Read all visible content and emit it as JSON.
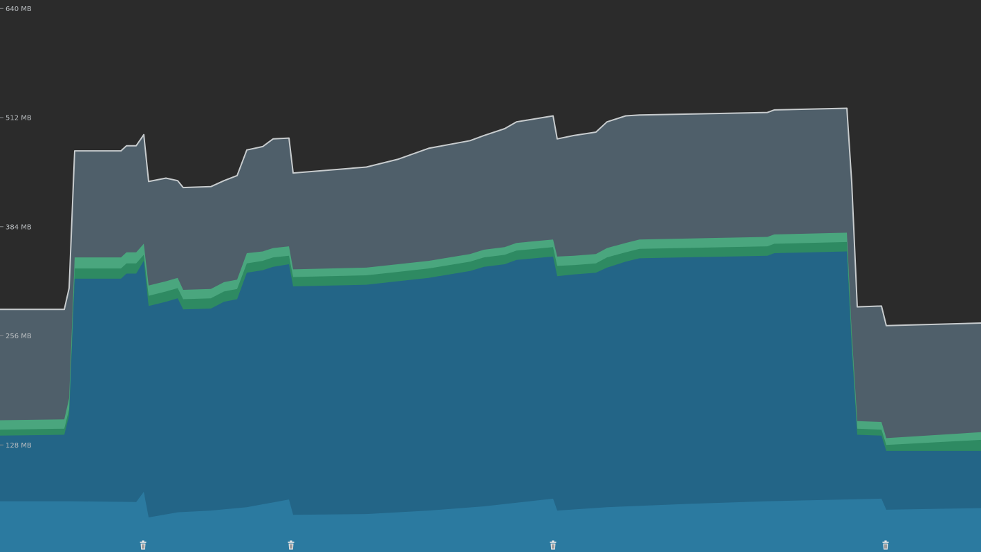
{
  "colors": {
    "background": "#2b2b2b",
    "total_fill": "#4f5f6a",
    "total_line": "#c8ccce",
    "green_light": "#4aa67e",
    "green_dark": "#2e8a62",
    "main_blue": "#236587",
    "base_blue": "#2b7aa0",
    "gc_icon": "#e6e6e6"
  },
  "chart_data": {
    "type": "area",
    "title": "",
    "xlabel": "",
    "ylabel": "",
    "yticks": [
      "640 MB",
      "512 MB",
      "384 MB",
      "256 MB",
      "128 MB"
    ],
    "ylim": [
      0,
      650
    ],
    "grid": false,
    "legend": "none",
    "series": [
      {
        "key": "total",
        "points": [
          [
            0,
            287
          ],
          [
            93,
            287
          ],
          [
            100,
            312
          ],
          [
            108,
            473
          ],
          [
            175,
            473
          ],
          [
            183,
            479
          ],
          [
            197,
            479
          ],
          [
            208,
            492
          ],
          [
            215,
            437
          ],
          [
            240,
            441
          ],
          [
            257,
            438
          ],
          [
            265,
            430
          ],
          [
            305,
            431
          ],
          [
            324,
            438
          ],
          [
            343,
            444
          ],
          [
            357,
            474
          ],
          [
            380,
            478
          ],
          [
            395,
            487
          ],
          [
            418,
            488
          ],
          [
            424,
            447
          ],
          [
            530,
            454
          ],
          [
            575,
            463
          ],
          [
            620,
            476
          ],
          [
            680,
            485
          ],
          [
            700,
            491
          ],
          [
            730,
            499
          ],
          [
            747,
            507
          ],
          [
            800,
            514
          ],
          [
            806,
            487
          ],
          [
            830,
            491
          ],
          [
            862,
            495
          ],
          [
            878,
            507
          ],
          [
            905,
            514
          ],
          [
            925,
            515
          ],
          [
            1110,
            518
          ],
          [
            1120,
            521
          ],
          [
            1225,
            523
          ],
          [
            1232,
            436
          ],
          [
            1240,
            290
          ],
          [
            1275,
            291
          ],
          [
            1282,
            268
          ],
          [
            1419,
            271
          ]
        ]
      },
      {
        "key": "green_top",
        "points": [
          [
            0,
            157
          ],
          [
            93,
            158
          ],
          [
            100,
            183
          ],
          [
            108,
            348
          ],
          [
            175,
            348
          ],
          [
            183,
            354
          ],
          [
            197,
            354
          ],
          [
            208,
            364
          ],
          [
            215,
            315
          ],
          [
            240,
            320
          ],
          [
            257,
            324
          ],
          [
            265,
            310
          ],
          [
            305,
            311
          ],
          [
            324,
            319
          ],
          [
            343,
            322
          ],
          [
            357,
            353
          ],
          [
            380,
            355
          ],
          [
            395,
            359
          ],
          [
            418,
            361
          ],
          [
            424,
            334
          ],
          [
            530,
            336
          ],
          [
            575,
            340
          ],
          [
            620,
            344
          ],
          [
            680,
            352
          ],
          [
            700,
            357
          ],
          [
            730,
            360
          ],
          [
            747,
            365
          ],
          [
            800,
            369
          ],
          [
            806,
            349
          ],
          [
            830,
            350
          ],
          [
            862,
            352
          ],
          [
            878,
            359
          ],
          [
            905,
            365
          ],
          [
            925,
            369
          ],
          [
            1110,
            372
          ],
          [
            1120,
            375
          ],
          [
            1225,
            377
          ],
          [
            1232,
            260
          ],
          [
            1240,
            156
          ],
          [
            1275,
            155
          ],
          [
            1282,
            136
          ],
          [
            1419,
            143
          ]
        ]
      },
      {
        "key": "green_mid",
        "points": [
          [
            0,
            146
          ],
          [
            93,
            147
          ],
          [
            100,
            170
          ],
          [
            108,
            335
          ],
          [
            175,
            335
          ],
          [
            183,
            341
          ],
          [
            197,
            341
          ],
          [
            208,
            351
          ],
          [
            215,
            303
          ],
          [
            240,
            308
          ],
          [
            257,
            312
          ],
          [
            265,
            299
          ],
          [
            305,
            300
          ],
          [
            324,
            308
          ],
          [
            343,
            311
          ],
          [
            357,
            341
          ],
          [
            380,
            344
          ],
          [
            395,
            348
          ],
          [
            418,
            350
          ],
          [
            424,
            325
          ],
          [
            530,
            327
          ],
          [
            575,
            331
          ],
          [
            620,
            335
          ],
          [
            680,
            343
          ],
          [
            700,
            348
          ],
          [
            730,
            351
          ],
          [
            747,
            356
          ],
          [
            800,
            360
          ],
          [
            806,
            338
          ],
          [
            830,
            339
          ],
          [
            862,
            341
          ],
          [
            878,
            348
          ],
          [
            905,
            354
          ],
          [
            925,
            358
          ],
          [
            1110,
            361
          ],
          [
            1120,
            364
          ],
          [
            1225,
            366
          ],
          [
            1232,
            252
          ],
          [
            1240,
            147
          ],
          [
            1275,
            146
          ],
          [
            1282,
            128
          ],
          [
            1419,
            134
          ]
        ]
      },
      {
        "key": "main_blue",
        "points": [
          [
            0,
            139
          ],
          [
            93,
            140
          ],
          [
            100,
            163
          ],
          [
            108,
            323
          ],
          [
            175,
            323
          ],
          [
            183,
            329
          ],
          [
            197,
            329
          ],
          [
            208,
            344
          ],
          [
            215,
            291
          ],
          [
            240,
            296
          ],
          [
            257,
            300
          ],
          [
            265,
            287
          ],
          [
            305,
            288
          ],
          [
            324,
            296
          ],
          [
            343,
            299
          ],
          [
            357,
            330
          ],
          [
            380,
            333
          ],
          [
            395,
            337
          ],
          [
            418,
            340
          ],
          [
            424,
            314
          ],
          [
            530,
            316
          ],
          [
            575,
            320
          ],
          [
            620,
            324
          ],
          [
            680,
            332
          ],
          [
            700,
            337
          ],
          [
            730,
            340
          ],
          [
            747,
            345
          ],
          [
            800,
            349
          ],
          [
            806,
            326
          ],
          [
            830,
            328
          ],
          [
            862,
            330
          ],
          [
            878,
            336
          ],
          [
            905,
            343
          ],
          [
            925,
            347
          ],
          [
            1110,
            350
          ],
          [
            1120,
            353
          ],
          [
            1225,
            355
          ],
          [
            1232,
            242
          ],
          [
            1240,
            140
          ],
          [
            1275,
            139
          ],
          [
            1282,
            121
          ],
          [
            1419,
            121
          ]
        ]
      },
      {
        "key": "base_blue",
        "points": [
          [
            0,
            62
          ],
          [
            100,
            62
          ],
          [
            197,
            61
          ],
          [
            208,
            73
          ],
          [
            215,
            43
          ],
          [
            257,
            49
          ],
          [
            305,
            51
          ],
          [
            357,
            55
          ],
          [
            418,
            64
          ],
          [
            424,
            46
          ],
          [
            530,
            47
          ],
          [
            620,
            51
          ],
          [
            700,
            56
          ],
          [
            800,
            65
          ],
          [
            806,
            51
          ],
          [
            878,
            55
          ],
          [
            1000,
            59
          ],
          [
            1110,
            62
          ],
          [
            1275,
            65
          ],
          [
            1282,
            52
          ],
          [
            1419,
            54
          ]
        ]
      }
    ],
    "gc_markers_x": [
      207,
      421,
      800,
      1281
    ]
  }
}
